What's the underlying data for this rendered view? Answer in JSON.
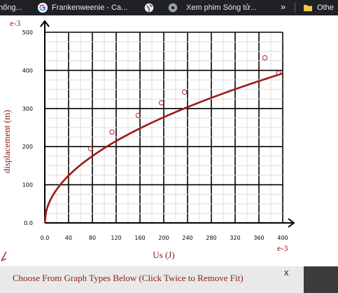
{
  "bookmarks": [
    {
      "label": "hống...",
      "icon": "page-icon"
    },
    {
      "label": "Frankenweenie - Ca...",
      "icon": "google-icon"
    },
    {
      "label": "",
      "icon": "globe-icon"
    },
    {
      "label": "Xem phim Sóng tử...",
      "icon": "globe-icon"
    },
    {
      "label": "Othe",
      "icon": "folder-icon"
    }
  ],
  "overflow_label": "»",
  "colors": {
    "accent": "#8b1a1a",
    "fit_line": "#a01818",
    "points": "#b22222",
    "bookmarks_bg": "#202124"
  },
  "chart": {
    "y_exponent": "e-3",
    "x_exponent": "e-3",
    "ylabel": "displacement (m)",
    "xlabel": "Us (J)"
  },
  "chart_data": {
    "type": "scatter",
    "xlabel": "Us (J)",
    "ylabel": "displacement (m)",
    "x_multiplier": "e-3",
    "y_multiplier": "e-3",
    "xlim": [
      0,
      400
    ],
    "ylim": [
      0,
      500
    ],
    "x_ticks": [
      "0.0",
      "40",
      "80",
      "120",
      "160",
      "200",
      "240",
      "280",
      "320",
      "360",
      "400"
    ],
    "y_ticks": [
      "0.0",
      "100",
      "200",
      "300",
      "400",
      "500"
    ],
    "grid": true,
    "series": [
      {
        "points": [
          {
            "x": 77,
            "y": 195
          },
          {
            "x": 113,
            "y": 238
          },
          {
            "x": 157,
            "y": 282
          },
          {
            "x": 196,
            "y": 315
          },
          {
            "x": 235,
            "y": 343
          },
          {
            "x": 370,
            "y": 433
          },
          {
            "x": 393,
            "y": 393
          }
        ]
      }
    ],
    "fit": {
      "type": "power",
      "a": 19.6,
      "b": 0.5
    }
  },
  "bottom": {
    "graph_types_label": "Choose From Graph Types Below (Click Twice to Remove Fit)",
    "close_label": "x"
  }
}
